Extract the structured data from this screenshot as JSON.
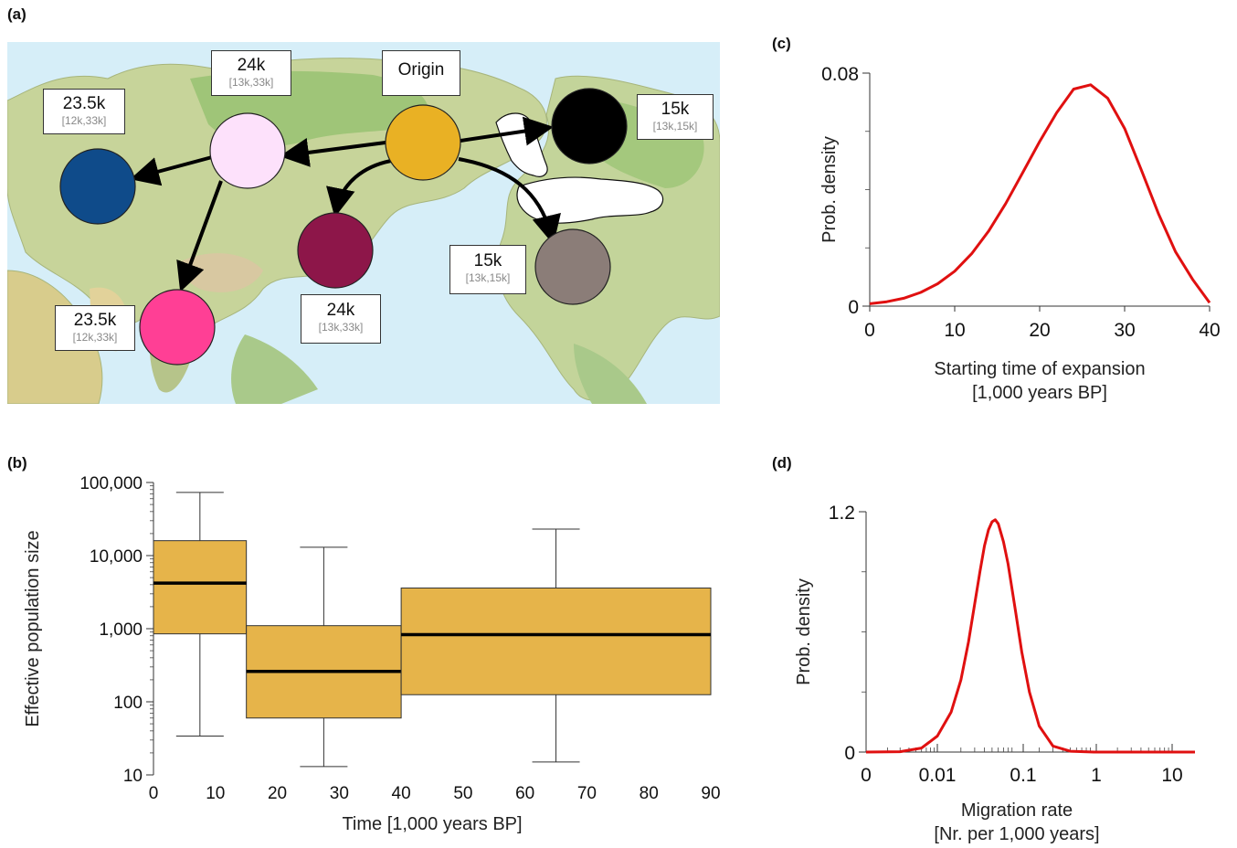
{
  "panels": {
    "a": "(a)",
    "b": "(b)",
    "c": "(c)",
    "d": "(d)"
  },
  "map": {
    "origin_label": "Origin",
    "colors": {
      "origin": "#e9b124",
      "north_asia": "#fde1fb",
      "europe": "#0f4b8a",
      "south_asia": "#ff3f95",
      "east_asia": "#8d1649",
      "beringia": "#000000",
      "america": "#8b7d78"
    },
    "nodes": [
      {
        "id": "north_asia",
        "time": "24k",
        "interval": "[13k,33k]"
      },
      {
        "id": "europe",
        "time": "23.5k",
        "interval": "[12k,33k]"
      },
      {
        "id": "south_asia",
        "time": "23.5k",
        "interval": "[12k,33k]"
      },
      {
        "id": "east_asia",
        "time": "24k",
        "interval": "[13k,33k]"
      },
      {
        "id": "beringia",
        "time": "15k",
        "interval": "[13k,15k]"
      },
      {
        "id": "america",
        "time": "15k",
        "interval": "[13k,15k]"
      }
    ]
  },
  "chart_data": [
    {
      "panel": "b",
      "type": "boxplot",
      "xlabel": "Time [1,000 years BP]",
      "ylabel": "Effective population size",
      "xlim": [
        0,
        90
      ],
      "ylim": [
        10,
        100000
      ],
      "yscale": "log",
      "x_ticks": [
        "0",
        "10",
        "20",
        "30",
        "40",
        "50",
        "60",
        "70",
        "80",
        "90"
      ],
      "y_ticks": [
        "10",
        "100",
        "1,000",
        "10,000",
        "100,000"
      ],
      "box_color": "#e6b44a",
      "boxes": [
        {
          "x_start": 0,
          "x_end": 15,
          "whisker_x": 7.5,
          "min": 34,
          "q1": 850,
          "median": 4200,
          "q3": 16000,
          "max": 73000
        },
        {
          "x_start": 15,
          "x_end": 40,
          "whisker_x": 27.5,
          "min": 13,
          "q1": 60,
          "median": 260,
          "q3": 1100,
          "max": 13000
        },
        {
          "x_start": 40,
          "x_end": 90,
          "whisker_x": 65,
          "min": 15,
          "q1": 125,
          "median": 830,
          "q3": 3600,
          "max": 23000
        }
      ]
    },
    {
      "panel": "c",
      "type": "line",
      "xlabel": "Starting time of expansion\n[1,000 years BP]",
      "ylabel": "Prob. density",
      "xlim": [
        0,
        40
      ],
      "ylim": [
        0,
        0.08
      ],
      "x_ticks": [
        "0",
        "10",
        "20",
        "30",
        "40"
      ],
      "y_ticks": [
        "0",
        "0.08"
      ],
      "line_color": "#e01010",
      "x": [
        0,
        2,
        4,
        6,
        8,
        10,
        12,
        14,
        16,
        18,
        20,
        22,
        24,
        26,
        28,
        30,
        32,
        34,
        36,
        38,
        40
      ],
      "y": [
        0.0008,
        0.0015,
        0.0027,
        0.0047,
        0.0077,
        0.012,
        0.018,
        0.0258,
        0.0352,
        0.0458,
        0.0565,
        0.0664,
        0.0745,
        0.076,
        0.0714,
        0.061,
        0.0465,
        0.0316,
        0.0186,
        0.0092,
        0.0012
      ]
    },
    {
      "panel": "d",
      "type": "line",
      "xlabel": "Migration rate\n[Nr. per 1,000 years]",
      "ylabel": "Prob. density",
      "xscale": "log",
      "xlim": [
        0.001,
        20
      ],
      "ylim": [
        0,
        1.2
      ],
      "x_ticks": [
        "0",
        "0.01",
        "0.1",
        "1",
        "10"
      ],
      "y_ticks": [
        "0",
        "1.2"
      ],
      "line_color": "#e01010",
      "x": [
        0.001,
        0.003,
        0.006,
        0.01,
        0.015,
        0.02,
        0.025,
        0.03,
        0.035,
        0.04,
        0.045,
        0.05,
        0.055,
        0.06,
        0.07,
        0.08,
        0.1,
        0.12,
        0.15,
        0.2,
        0.3,
        0.5,
        1,
        20
      ],
      "y": [
        0,
        0.002,
        0.02,
        0.08,
        0.2,
        0.36,
        0.55,
        0.74,
        0.9,
        1.03,
        1.11,
        1.15,
        1.16,
        1.14,
        1.05,
        0.94,
        0.7,
        0.5,
        0.3,
        0.13,
        0.03,
        0.004,
        0,
        0
      ]
    }
  ]
}
